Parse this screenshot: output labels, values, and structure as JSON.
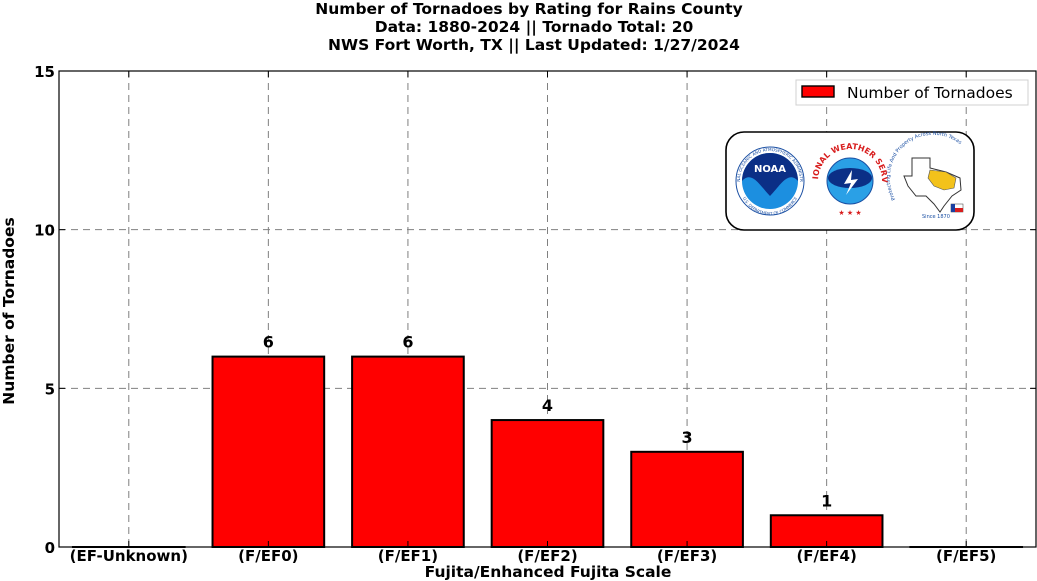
{
  "chart_data": {
    "type": "bar",
    "title": [
      "Number of Tornadoes by Rating for Rains County",
      "Data: 1880-2024 || Tornado Total: 20",
      "NWS Fort Worth, TX || Last Updated: 1/27/2024"
    ],
    "categories": [
      "(EF-Unknown)",
      "(F/EF0)",
      "(F/EF1)",
      "(F/EF2)",
      "(F/EF3)",
      "(F/EF4)",
      "(F/EF5)"
    ],
    "series": [
      {
        "name": "Number of Tornadoes",
        "values": [
          0,
          6,
          6,
          4,
          3,
          1,
          0
        ],
        "color": "#ff0000"
      }
    ],
    "data_labels": [
      "",
      "6",
      "6",
      "4",
      "3",
      "1",
      ""
    ],
    "xlabel": "Fujita/Enhanced Fujita Scale",
    "ylabel": "Number of Tornadoes",
    "ylim": [
      0,
      15
    ],
    "yticks": [
      0,
      5,
      10,
      15
    ],
    "ytick_labels": [
      "0",
      "5",
      "10",
      "15"
    ],
    "grid": true,
    "legend_position": "top-right"
  },
  "logos": {
    "noaa": {
      "text": "NOAA",
      "ring_text": "NATIONAL OCEANIC AND ATMOSPHERIC ADMINISTRATION",
      "bottom_text": "U.S. DEPARTMENT OF COMMERCE"
    },
    "nws": {
      "ring_text": "NATIONAL WEATHER SERVICE"
    },
    "fwd": {
      "ring_text": "Protecting Life And Property Across North Texas",
      "bottom_text": "Since 1870"
    }
  },
  "colors": {
    "bar": "#ff0000",
    "grid": "#808080",
    "logo_blue": "#1a4fa3",
    "logo_red": "#d81e1e"
  }
}
